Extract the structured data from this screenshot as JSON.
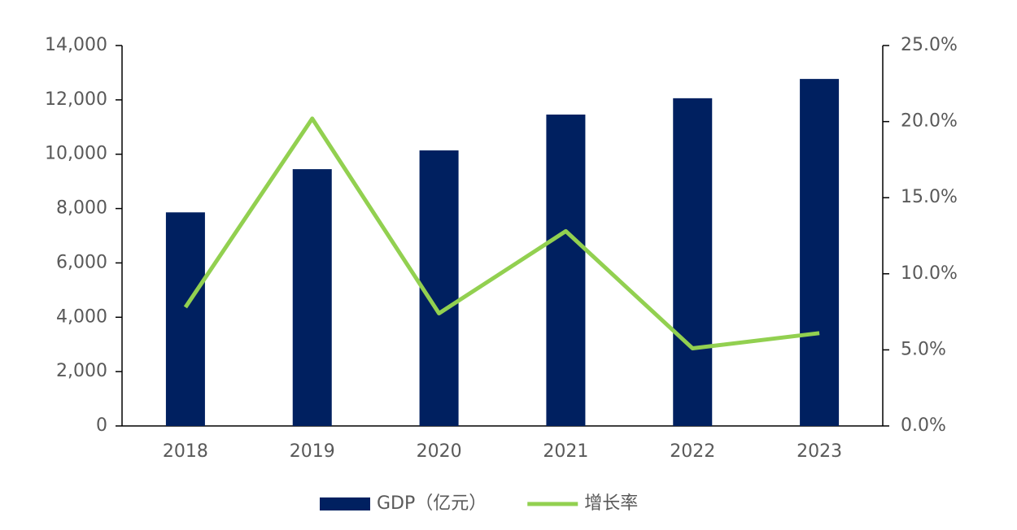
{
  "chart_data": {
    "type": "bar-line",
    "categories": [
      "2018",
      "2019",
      "2020",
      "2021",
      "2022",
      "2023"
    ],
    "series": [
      {
        "name": "GDP（亿元）",
        "color": "#002060",
        "type": "bar",
        "values": [
          7860,
          9450,
          10140,
          11460,
          12060,
          12770
        ]
      },
      {
        "name": "增长率",
        "color": "#92d050",
        "type": "line",
        "axis": "y2",
        "values": [
          7.8,
          20.2,
          7.4,
          12.8,
          5.1,
          6.1
        ]
      }
    ],
    "ylim": [
      0,
      14000
    ],
    "yticks": [
      0,
      {
        "value": 2000,
        "label": "2,000"
      },
      {
        "value": 4000,
        "label": "4,000"
      },
      {
        "value": 6000,
        "label": "6,000"
      },
      {
        "value": 8000,
        "label": "8,000"
      },
      {
        "value": 10000,
        "label": "10,000"
      },
      {
        "value": 12000,
        "label": "12,000"
      },
      {
        "value": 14000,
        "label": "14,000"
      }
    ],
    "y2lim": [
      0,
      25
    ],
    "y2ticks": [
      {
        "value": 0,
        "label": "0.0%"
      },
      {
        "value": 5,
        "label": "5.0%"
      },
      {
        "value": 10,
        "label": "10.0%"
      },
      {
        "value": 15,
        "label": "15.0%"
      },
      {
        "value": 20,
        "label": "20.0%"
      },
      {
        "value": 25,
        "label": "25.0%"
      }
    ],
    "grid": false,
    "legend": "bottom"
  }
}
